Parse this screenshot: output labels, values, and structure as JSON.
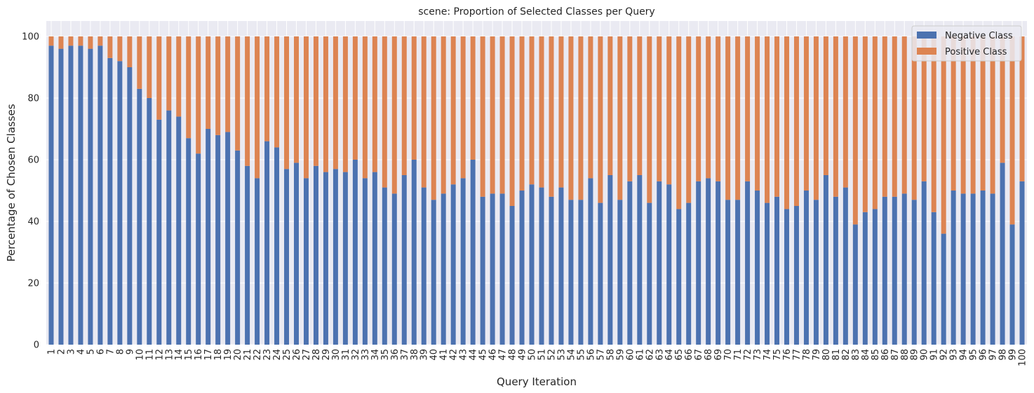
{
  "chart_data": {
    "type": "bar",
    "stacked": true,
    "title": "scene: Proportion of Selected Classes per Query",
    "xlabel": "Query Iteration",
    "ylabel": "Percentage of Chosen Classes",
    "ylim": [
      0,
      105
    ],
    "yticks": [
      0,
      20,
      40,
      60,
      80,
      100
    ],
    "grid": true,
    "legend_position": "top-right",
    "categories": [
      "1",
      "2",
      "3",
      "4",
      "5",
      "6",
      "7",
      "8",
      "9",
      "10",
      "11",
      "12",
      "13",
      "14",
      "15",
      "16",
      "17",
      "18",
      "19",
      "20",
      "21",
      "22",
      "23",
      "24",
      "25",
      "26",
      "27",
      "28",
      "29",
      "30",
      "31",
      "32",
      "33",
      "34",
      "35",
      "36",
      "37",
      "38",
      "39",
      "40",
      "41",
      "42",
      "43",
      "44",
      "45",
      "46",
      "47",
      "48",
      "49",
      "50",
      "51",
      "52",
      "53",
      "54",
      "55",
      "56",
      "57",
      "58",
      "59",
      "60",
      "61",
      "62",
      "63",
      "64",
      "65",
      "66",
      "67",
      "68",
      "69",
      "70",
      "71",
      "72",
      "73",
      "74",
      "75",
      "76",
      "77",
      "78",
      "79",
      "80",
      "81",
      "82",
      "83",
      "84",
      "85",
      "86",
      "87",
      "88",
      "89",
      "90",
      "91",
      "92",
      "93",
      "94",
      "95",
      "96",
      "97",
      "98",
      "99",
      "100"
    ],
    "series": [
      {
        "name": "Negative Class",
        "color": "#4c72b0",
        "values": [
          97,
          96,
          97,
          97,
          96,
          97,
          93,
          92,
          90,
          83,
          80,
          73,
          76,
          74,
          67,
          62,
          70,
          68,
          69,
          63,
          58,
          54,
          66,
          64,
          57,
          59,
          54,
          58,
          56,
          57,
          56,
          60,
          54,
          56,
          51,
          49,
          55,
          60,
          51,
          47,
          49,
          52,
          54,
          60,
          48,
          49,
          49,
          45,
          50,
          52,
          51,
          48,
          51,
          47,
          47,
          54,
          46,
          55,
          47,
          53,
          55,
          46,
          53,
          52,
          44,
          46,
          53,
          54,
          53,
          47,
          47,
          53,
          50,
          46,
          48,
          44,
          45,
          50,
          47,
          55,
          48,
          51,
          39,
          43,
          44,
          48,
          48,
          49,
          47,
          53,
          43,
          36,
          50,
          49,
          49,
          50,
          49,
          59,
          39,
          53
        ]
      },
      {
        "name": "Positive Class",
        "color": "#dd8452",
        "values": [
          3,
          4,
          3,
          3,
          4,
          3,
          7,
          8,
          10,
          17,
          20,
          27,
          24,
          26,
          33,
          38,
          30,
          32,
          31,
          37,
          42,
          46,
          34,
          36,
          43,
          41,
          46,
          42,
          44,
          43,
          44,
          40,
          46,
          44,
          49,
          51,
          45,
          40,
          49,
          53,
          51,
          48,
          46,
          40,
          52,
          51,
          51,
          55,
          50,
          48,
          49,
          52,
          49,
          53,
          53,
          46,
          54,
          45,
          53,
          47,
          45,
          54,
          47,
          48,
          56,
          54,
          47,
          46,
          47,
          53,
          53,
          47,
          50,
          54,
          52,
          56,
          55,
          50,
          53,
          45,
          52,
          49,
          61,
          57,
          56,
          52,
          52,
          51,
          53,
          47,
          57,
          64,
          50,
          51,
          51,
          50,
          51,
          41,
          61,
          47
        ]
      }
    ]
  }
}
